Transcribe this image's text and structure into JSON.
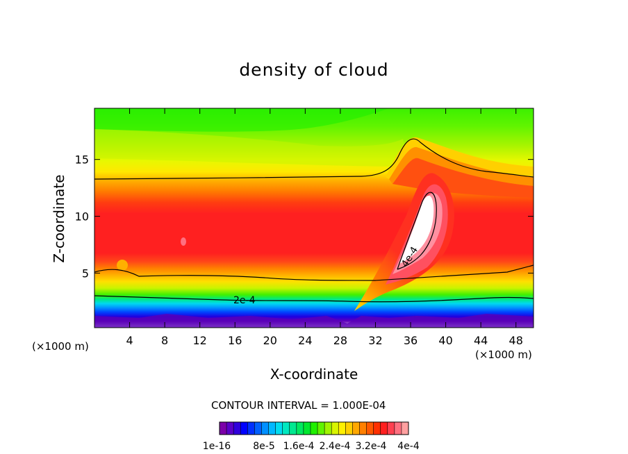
{
  "chart_data": {
    "type": "contour",
    "title": "density of cloud",
    "xlabel": "X-coordinate",
    "ylabel": "Z-coordinate",
    "x_unit_left": "(×1000 m)",
    "x_unit_right": "(×1000 m)",
    "xlim": [
      0,
      50
    ],
    "ylim": [
      0.2,
      19.5
    ],
    "x_ticks": [
      4,
      8,
      12,
      16,
      20,
      24,
      28,
      32,
      36,
      40,
      44,
      48
    ],
    "y_ticks": [
      5,
      10,
      15
    ],
    "contour_lines": [
      {
        "label": "2e-4",
        "label_x": 17.5,
        "label_z": 2.6
      },
      {
        "label": "4e-4",
        "label_x": 35.5,
        "label_z": 6.2
      }
    ],
    "contour_interval_text": "CONTOUR INTERVAL = 1.000E-04",
    "colorbar": {
      "tick_labels": [
        "1e-16",
        "8e-5",
        "1.6e-4",
        "2.4e-4",
        "3.2e-4",
        "4e-4"
      ],
      "colors": [
        "#7b00a8",
        "#5a00c8",
        "#3000dc",
        "#0000ff",
        "#0030ff",
        "#0060ff",
        "#0090ff",
        "#00b8ff",
        "#00dcf0",
        "#00e8c0",
        "#00e890",
        "#00e860",
        "#00e830",
        "#20f000",
        "#60f400",
        "#a0f400",
        "#d8f400",
        "#fff000",
        "#ffd000",
        "#ffa800",
        "#ff8000",
        "#ff5800",
        "#ff3000",
        "#ff2020",
        "#ff4050",
        "#ff7080",
        "#ffa0a0"
      ]
    },
    "grid": false,
    "legend": "colorbar-bottom"
  }
}
